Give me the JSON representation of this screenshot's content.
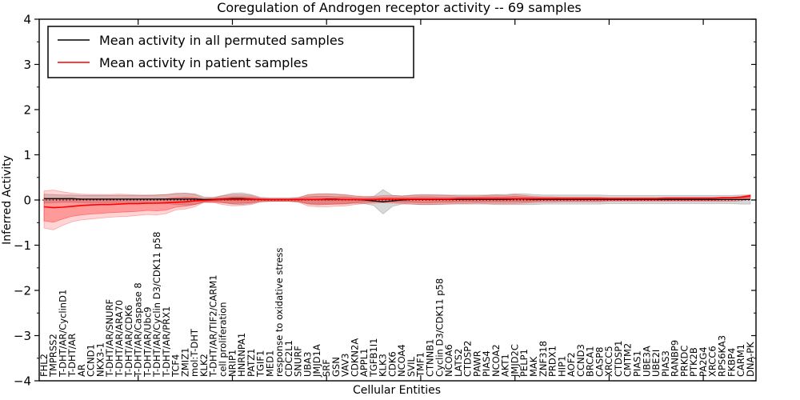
{
  "title": "Coregulation of Androgen receptor activity -- 69 samples",
  "legend": {
    "items": [
      {
        "label": "Mean activity in all permuted samples",
        "color": "#000000"
      },
      {
        "label": "Mean activity in patient samples",
        "color": "#ff0000"
      }
    ]
  },
  "axes": {
    "xlabel": "Cellular Entities",
    "ylabel": "Inferred Activity",
    "ylim": [
      -4,
      4
    ],
    "yticks": [
      4,
      3,
      2,
      1,
      0,
      -1,
      -2,
      -3,
      -4
    ],
    "ytick_labels": [
      "4",
      "3",
      "2",
      "1",
      "0",
      "−1",
      "−2",
      "−3",
      "−4"
    ],
    "yticks_minor": [
      3.5,
      2.5,
      1.5,
      0.5,
      -0.5,
      -1.5,
      -2.5,
      -3.5
    ],
    "x_major_tick_indices": [
      10,
      20,
      30,
      40,
      50,
      60,
      70
    ]
  },
  "chart_data": {
    "type": "line",
    "title": "Coregulation of Androgen receptor activity -- 69 samples",
    "xlabel": "Cellular Entities",
    "ylabel": "Inferred Activity",
    "ylim": [
      -4,
      4
    ],
    "grid": false,
    "legend_position": "upper left",
    "zero_line": {
      "style": "dotted",
      "color": "#000000",
      "y": 0
    },
    "categories": [
      "FHL2",
      "TMPRSS2",
      "T-DHT/AR/CyclinD1",
      "T-DHT/AR",
      "AR",
      "CCND1",
      "NKX3-1",
      "T-DHT/AR/SNURF",
      "T-DHT/AR/ARA70",
      "T-DHT/AR/CDK6",
      "T-DHT/AR/Caspase 8",
      "T-DHT/AR/Ubc9",
      "T-DHT/AR/Cyclin D3/CDK11 p58",
      "T-DHT/AR/PRX1",
      "TCF4",
      "ZMIZ1",
      "mol:T-DHT",
      "KLK2",
      "T-DHT/AR/TIF2/CARM1",
      "cell proliferation",
      "NRIP1",
      "HNRNPA1",
      "PATZ1",
      "TGIF1",
      "MED1",
      "response to oxidative stress",
      "CDC2L1",
      "SNURF",
      "UBA3",
      "JMJD1A",
      "SRF",
      "GSN",
      "VAV3",
      "CDKN2A",
      "APPL1",
      "TGFB1I1",
      "KLK3",
      "CDK6",
      "NCOA4",
      "SVIL",
      "TMF1",
      "CTNNB1",
      "Cyclin D3/CDK11 p58",
      "NCOA6",
      "LATS2",
      "CTDSP2",
      "PAWR",
      "PIAS4",
      "NCOA2",
      "AKT1",
      "JMJD2C",
      "PELP1",
      "MAK",
      "ZNF318",
      "PRDX1",
      "HIP1",
      "AOF2",
      "CCND3",
      "BRCA1",
      "CASP8",
      "XRCC5",
      "CTDSP1",
      "CMTM2",
      "PIAS1",
      "UBE3A",
      "UBE2I",
      "PIAS3",
      "RANBP9",
      "PRKDC",
      "PTK2B",
      "PA2G4",
      "XRCC6",
      "RPS6KA3",
      "FKBP4",
      "CARM1",
      "DNA-PK"
    ],
    "series": [
      {
        "name": "Mean activity in all permuted samples",
        "color": "#000000",
        "width": 1.3,
        "values": [
          0.03,
          0.03,
          0.03,
          0.03,
          0.02,
          0.02,
          0.02,
          0.02,
          0.02,
          0.02,
          0.02,
          0.02,
          0.02,
          0.02,
          0.02,
          0.02,
          0.02,
          0.01,
          0.01,
          0.02,
          0.03,
          0.03,
          0.02,
          0.01,
          0.01,
          0.01,
          0.01,
          0.01,
          0.01,
          0.01,
          0.02,
          0.02,
          0.01,
          0.01,
          0.0,
          -0.02,
          -0.04,
          -0.02,
          0.0,
          0.01,
          0.01,
          0.01,
          0.01,
          0.01,
          0.01,
          0.01,
          0.01,
          0.01,
          0.01,
          0.01,
          0.02,
          0.02,
          0.01,
          0.01,
          0.01,
          0.01,
          0.01,
          0.01,
          0.01,
          0.01,
          0.01,
          0.01,
          0.01,
          0.01,
          0.01,
          0.01,
          0.01,
          0.01,
          0.01,
          0.01,
          0.01,
          0.01,
          0.01,
          0.01,
          0.01,
          0.01
        ]
      },
      {
        "name": "Mean activity in patient samples",
        "color": "#ff0000",
        "width": 1.6,
        "values": [
          -0.15,
          -0.17,
          -0.16,
          -0.14,
          -0.12,
          -0.11,
          -0.1,
          -0.1,
          -0.09,
          -0.08,
          -0.08,
          -0.07,
          -0.07,
          -0.06,
          -0.05,
          -0.04,
          -0.02,
          -0.01,
          0.0,
          0.01,
          0.01,
          0.01,
          0.01,
          0.01,
          0.01,
          0.01,
          0.01,
          0.01,
          0.01,
          0.01,
          0.01,
          0.01,
          0.01,
          0.01,
          0.01,
          0.01,
          0.02,
          0.02,
          0.02,
          0.02,
          0.02,
          0.02,
          0.02,
          0.02,
          0.03,
          0.03,
          0.03,
          0.03,
          0.03,
          0.03,
          0.03,
          0.03,
          0.03,
          0.03,
          0.03,
          0.03,
          0.03,
          0.03,
          0.03,
          0.03,
          0.03,
          0.03,
          0.03,
          0.03,
          0.03,
          0.03,
          0.04,
          0.04,
          0.04,
          0.04,
          0.04,
          0.04,
          0.05,
          0.05,
          0.06,
          0.09
        ]
      }
    ],
    "bands": [
      {
        "name": "permuted-samples-std-band",
        "around_series": "Mean activity in all permuted samples",
        "halfwidth": [
          0.1,
          0.09,
          0.08,
          0.08,
          0.08,
          0.08,
          0.08,
          0.08,
          0.08,
          0.08,
          0.08,
          0.08,
          0.09,
          0.1,
          0.12,
          0.13,
          0.12,
          0.06,
          0.05,
          0.08,
          0.12,
          0.13,
          0.1,
          0.05,
          0.04,
          0.04,
          0.04,
          0.05,
          0.1,
          0.12,
          0.12,
          0.11,
          0.1,
          0.08,
          0.08,
          0.1,
          0.27,
          0.12,
          0.09,
          0.1,
          0.11,
          0.11,
          0.11,
          0.1,
          0.1,
          0.1,
          0.1,
          0.1,
          0.11,
          0.11,
          0.12,
          0.12,
          0.11,
          0.1,
          0.1,
          0.1,
          0.1,
          0.1,
          0.1,
          0.1,
          0.09,
          0.09,
          0.09,
          0.09,
          0.09,
          0.09,
          0.09,
          0.09,
          0.09,
          0.09,
          0.09,
          0.09,
          0.09,
          0.09,
          0.1,
          0.1
        ],
        "color": "#7f7f7f",
        "opacity": 0.3
      },
      {
        "name": "patient-samples-std-outer-band",
        "top": [
          0.2,
          0.22,
          0.18,
          0.15,
          0.13,
          0.12,
          0.12,
          0.12,
          0.13,
          0.12,
          0.11,
          0.11,
          0.11,
          0.12,
          0.15,
          0.15,
          0.12,
          0.04,
          0.05,
          0.09,
          0.12,
          0.12,
          0.1,
          0.04,
          0.03,
          0.03,
          0.03,
          0.05,
          0.12,
          0.14,
          0.14,
          0.13,
          0.12,
          0.09,
          0.07,
          0.08,
          0.1,
          0.1,
          0.09,
          0.1,
          0.11,
          0.11,
          0.1,
          0.1,
          0.09,
          0.09,
          0.09,
          0.1,
          0.11,
          0.1,
          0.12,
          0.1,
          0.08,
          0.07,
          0.07,
          0.06,
          0.06,
          0.06,
          0.06,
          0.06,
          0.05,
          0.05,
          0.05,
          0.05,
          0.05,
          0.05,
          0.05,
          0.05,
          0.05,
          0.05,
          0.05,
          0.05,
          0.06,
          0.06,
          0.08,
          0.12
        ],
        "bottom": [
          -0.62,
          -0.66,
          -0.56,
          -0.48,
          -0.44,
          -0.42,
          -0.4,
          -0.38,
          -0.37,
          -0.36,
          -0.34,
          -0.32,
          -0.33,
          -0.3,
          -0.22,
          -0.2,
          -0.15,
          -0.05,
          -0.06,
          -0.1,
          -0.13,
          -0.12,
          -0.1,
          -0.04,
          -0.03,
          -0.03,
          -0.03,
          -0.05,
          -0.13,
          -0.15,
          -0.15,
          -0.14,
          -0.13,
          -0.1,
          -0.08,
          -0.07,
          -0.06,
          -0.07,
          -0.08,
          -0.09,
          -0.1,
          -0.1,
          -0.09,
          -0.09,
          -0.08,
          -0.08,
          -0.07,
          -0.08,
          -0.08,
          -0.08,
          -0.08,
          -0.07,
          -0.06,
          -0.05,
          -0.05,
          -0.04,
          -0.04,
          -0.04,
          -0.04,
          -0.04,
          -0.03,
          -0.03,
          -0.03,
          -0.03,
          -0.03,
          -0.03,
          -0.03,
          -0.03,
          -0.03,
          -0.03,
          -0.03,
          -0.03,
          -0.03,
          -0.03,
          -0.02,
          0.03
        ],
        "color": "#ff0000",
        "opacity": 0.17
      },
      {
        "name": "patient-samples-std-inner-band",
        "top": [
          0.03,
          0.03,
          0.01,
          0.01,
          0.01,
          0.01,
          0.01,
          0.01,
          0.02,
          0.02,
          0.02,
          0.02,
          0.02,
          0.03,
          0.05,
          0.06,
          0.05,
          0.02,
          0.03,
          0.05,
          0.07,
          0.07,
          0.06,
          0.03,
          0.02,
          0.02,
          0.02,
          0.03,
          0.07,
          0.08,
          0.08,
          0.07,
          0.07,
          0.05,
          0.04,
          0.05,
          0.06,
          0.06,
          0.06,
          0.06,
          0.07,
          0.07,
          0.06,
          0.06,
          0.06,
          0.06,
          0.06,
          0.07,
          0.07,
          0.07,
          0.08,
          0.07,
          0.06,
          0.05,
          0.05,
          0.05,
          0.05,
          0.05,
          0.05,
          0.05,
          0.04,
          0.04,
          0.04,
          0.04,
          0.04,
          0.04,
          0.05,
          0.05,
          0.05,
          0.05,
          0.05,
          0.05,
          0.06,
          0.06,
          0.07,
          0.11
        ],
        "bottom": [
          -0.46,
          -0.49,
          -0.42,
          -0.36,
          -0.33,
          -0.31,
          -0.3,
          -0.28,
          -0.27,
          -0.26,
          -0.25,
          -0.23,
          -0.24,
          -0.22,
          -0.16,
          -0.14,
          -0.1,
          -0.04,
          -0.04,
          -0.06,
          -0.08,
          -0.07,
          -0.06,
          -0.02,
          -0.02,
          -0.02,
          -0.02,
          -0.03,
          -0.08,
          -0.09,
          -0.09,
          -0.09,
          -0.08,
          -0.06,
          -0.05,
          -0.04,
          -0.03,
          -0.04,
          -0.05,
          -0.05,
          -0.06,
          -0.06,
          -0.05,
          -0.05,
          -0.04,
          -0.04,
          -0.04,
          -0.04,
          -0.04,
          -0.04,
          -0.04,
          -0.04,
          -0.03,
          -0.02,
          -0.02,
          -0.02,
          -0.02,
          -0.02,
          -0.02,
          -0.02,
          -0.01,
          -0.01,
          -0.01,
          -0.01,
          -0.01,
          -0.01,
          -0.01,
          -0.01,
          -0.01,
          -0.01,
          -0.01,
          -0.01,
          0.0,
          0.0,
          0.01,
          0.05
        ],
        "color": "#ff0000",
        "opacity": 0.27
      }
    ]
  }
}
